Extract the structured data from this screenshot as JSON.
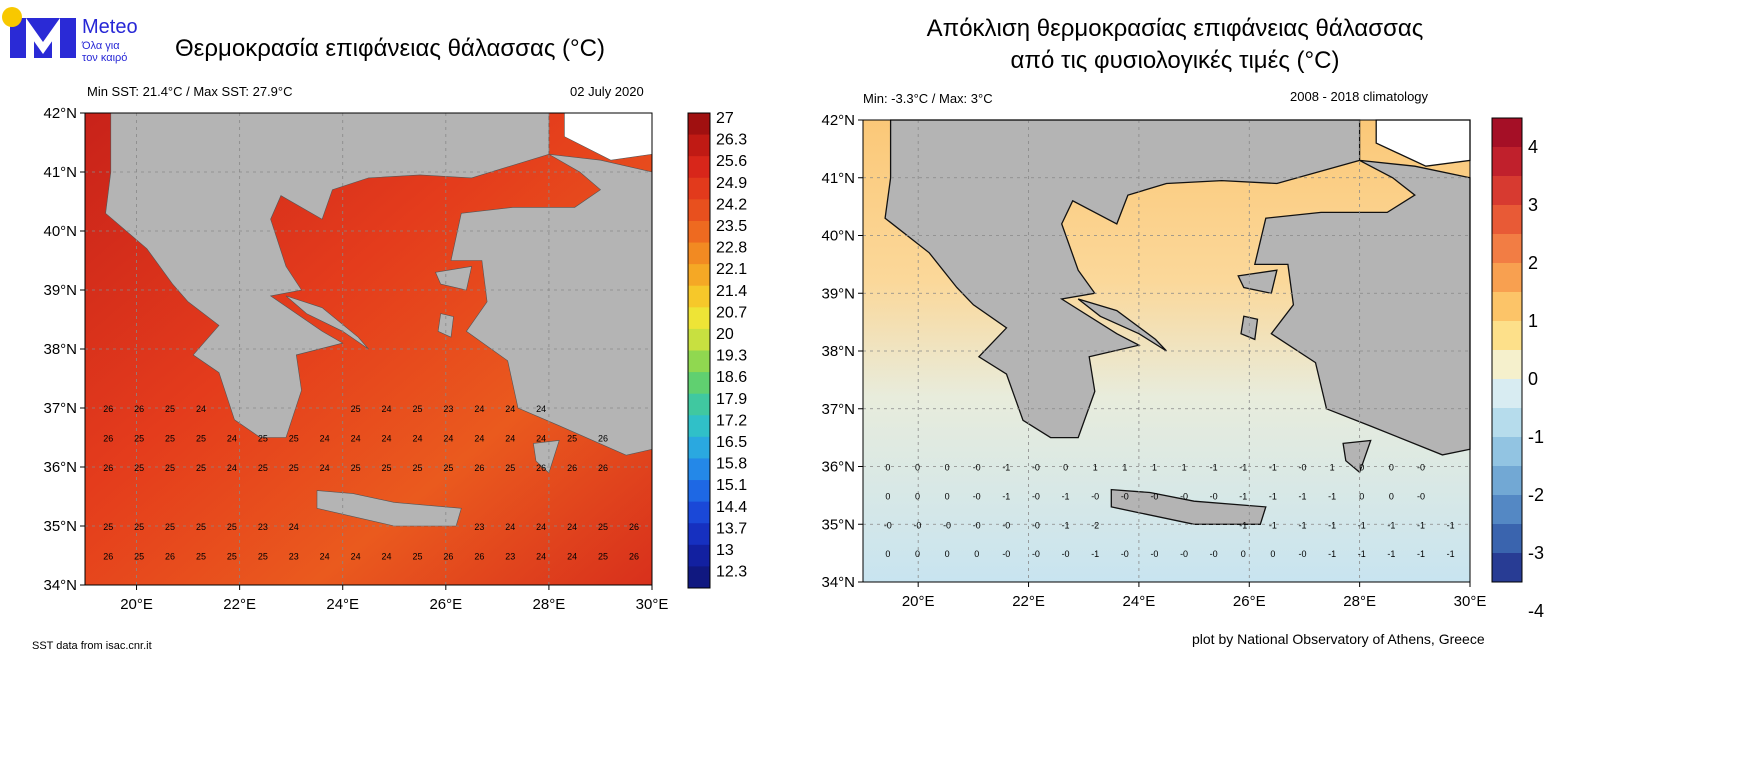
{
  "logo": {
    "name": "Meteo",
    "tagline_1": "Όλα για",
    "tagline_2": "τον καιρό",
    "colors": {
      "blue": "#2a2ad6",
      "yellow": "#f8c800"
    }
  },
  "left_map": {
    "title": "Θερμοκρασία επιφάνειας θάλασσας (°C)",
    "stats": "Min SST: 21.4°C / Max SST: 27.9°C",
    "date": "02 July 2020",
    "source": "SST data from isac.cnr.it",
    "lat_labels": [
      "42°N",
      "41°N",
      "40°N",
      "39°N",
      "38°N",
      "37°N",
      "36°N",
      "35°N",
      "34°N"
    ],
    "lon_labels": [
      "20°E",
      "22°E",
      "24°E",
      "26°E",
      "28°E",
      "30°E"
    ],
    "colorbar_labels": [
      "27",
      "26.3",
      "25.6",
      "24.9",
      "24.2",
      "23.5",
      "22.8",
      "22.1",
      "21.4",
      "20.7",
      "20",
      "19.3",
      "18.6",
      "17.9",
      "17.2",
      "16.5",
      "15.8",
      "15.1",
      "14.4",
      "13.7",
      "13",
      "12.3"
    ],
    "colorbar_colors": [
      "#a01010",
      "#c01a14",
      "#d8261a",
      "#e23a1c",
      "#e8501e",
      "#ee6a20",
      "#f28a22",
      "#f5a825",
      "#f6c82a",
      "#eee436",
      "#c8e040",
      "#90d850",
      "#60d070",
      "#40c8a0",
      "#30c0c8",
      "#2aa8e0",
      "#2488e8",
      "#1e68e4",
      "#1a48d8",
      "#1630c0",
      "#1220a0",
      "#101880"
    ],
    "grid_rows": [
      {
        "lat": 37.0,
        "values": [
          "26",
          "26",
          "25",
          "24",
          null,
          null,
          null,
          null,
          "25",
          "24",
          "25",
          "23",
          "24",
          "24",
          "24",
          null,
          null,
          null
        ]
      },
      {
        "lat": 36.5,
        "values": [
          "26",
          "25",
          "25",
          "25",
          "24",
          "25",
          "25",
          "24",
          "24",
          "24",
          "24",
          "24",
          "24",
          "24",
          "24",
          "25",
          "26",
          null
        ]
      },
      {
        "lat": 36.0,
        "values": [
          "26",
          "25",
          "25",
          "25",
          "24",
          "25",
          "25",
          "24",
          "25",
          "25",
          "25",
          "25",
          "26",
          "25",
          "26",
          "26",
          "26",
          null
        ]
      },
      {
        "lat": 35.0,
        "values": [
          "25",
          "25",
          "25",
          "25",
          "25",
          "23",
          "24",
          null,
          null,
          null,
          null,
          null,
          "23",
          "24",
          "24",
          "24",
          "25",
          "26"
        ]
      },
      {
        "lat": 34.5,
        "values": [
          "26",
          "25",
          "26",
          "25",
          "25",
          "25",
          "23",
          "24",
          "24",
          "24",
          "25",
          "26",
          "26",
          "23",
          "24",
          "24",
          "25",
          "26"
        ]
      }
    ]
  },
  "right_map": {
    "title_line1": "Απόκλιση θερμοκρασίας επιφάνειας θάλασσας",
    "title_line2": "από τις φυσιολογικές τιμές (°C)",
    "stats": "Min: -3.3°C / Max: 3°C",
    "climatology": "2008 - 2018 climatology",
    "credit": "plot by National Observatory of Athens, Greece",
    "lat_labels": [
      "42°N",
      "41°N",
      "40°N",
      "39°N",
      "38°N",
      "37°N",
      "36°N",
      "35°N",
      "34°N"
    ],
    "lon_labels": [
      "20°E",
      "22°E",
      "24°E",
      "26°E",
      "28°E",
      "30°E"
    ],
    "colorbar_labels": [
      "4",
      "3",
      "2",
      "1",
      "0",
      "-1",
      "-2",
      "-3",
      "-4"
    ],
    "colorbar_colors": [
      "#a50f26",
      "#c0202c",
      "#d73a30",
      "#e85a36",
      "#f27d44",
      "#f8a050",
      "#fcc468",
      "#fde08a",
      "#f5f0cc",
      "#d8ecf2",
      "#b6dcec",
      "#92c4e2",
      "#72a8d4",
      "#5488c4",
      "#3a64ae",
      "#283c94"
    ],
    "grid_rows": [
      {
        "lat": 36.0,
        "values": [
          "0",
          "0",
          "0",
          "-0",
          "-1",
          "-0",
          "0",
          "1",
          "1",
          "1",
          "1",
          "-1",
          "-1",
          "-1",
          "-0",
          "1",
          "0",
          "0",
          "-0",
          null
        ]
      },
      {
        "lat": 35.5,
        "values": [
          "0",
          "0",
          "0",
          "-0",
          "-1",
          "-0",
          "-1",
          "-0",
          "-0",
          "-0",
          "-0",
          "-0",
          "-1",
          "-1",
          "-1",
          "-1",
          "0",
          "0",
          "-0",
          null
        ]
      },
      {
        "lat": 35.0,
        "values": [
          "-0",
          "-0",
          "-0",
          "-0",
          "-0",
          "-0",
          "-1",
          "-2",
          null,
          null,
          null,
          null,
          "-1",
          "-1",
          "-1",
          "-1",
          "-1",
          "-1",
          "-1",
          "-1"
        ]
      },
      {
        "lat": 34.5,
        "values": [
          "0",
          "0",
          "0",
          "0",
          "-0",
          "-0",
          "-0",
          "-1",
          "-0",
          "-0",
          "-0",
          "-0",
          "0",
          "0",
          "-0",
          "-1",
          "-1",
          "-1",
          "-1",
          "-1"
        ]
      }
    ]
  }
}
